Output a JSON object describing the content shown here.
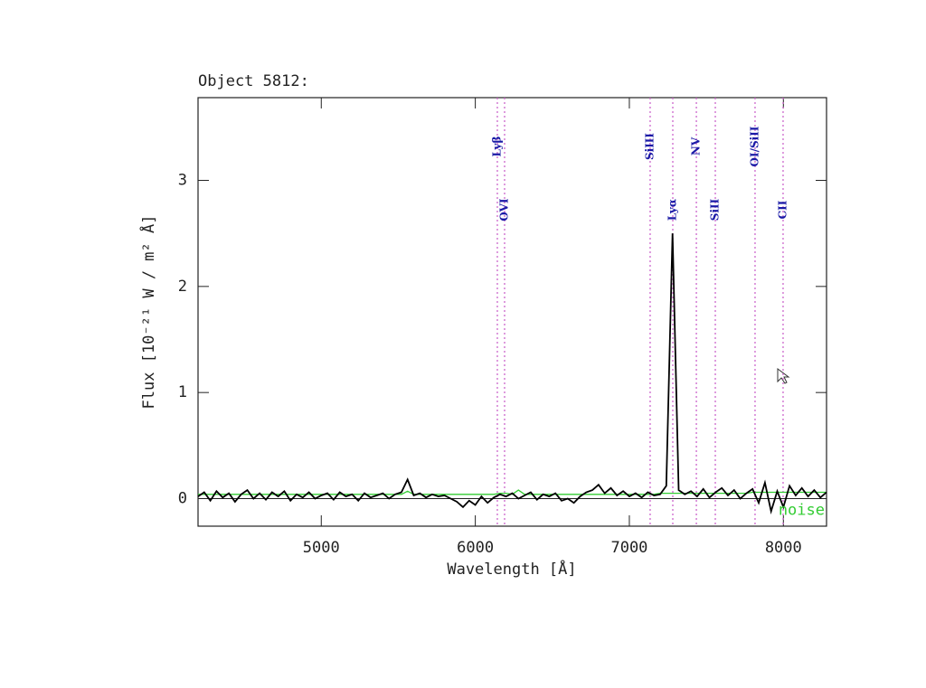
{
  "chart_data": {
    "type": "line",
    "title": "Object 5812:",
    "xlabel": "Wavelength [Å]",
    "ylabel": "Flux [10⁻²¹  W / m² Å]",
    "x": [
      4200,
      4240,
      4280,
      4320,
      4360,
      4400,
      4440,
      4480,
      4520,
      4560,
      4600,
      4640,
      4680,
      4720,
      4760,
      4800,
      4840,
      4880,
      4920,
      4960,
      5000,
      5040,
      5080,
      5120,
      5160,
      5200,
      5240,
      5280,
      5320,
      5360,
      5400,
      5440,
      5480,
      5520,
      5560,
      5600,
      5640,
      5680,
      5720,
      5760,
      5800,
      5840,
      5880,
      5920,
      5960,
      6000,
      6040,
      6080,
      6120,
      6160,
      6200,
      6240,
      6280,
      6320,
      6360,
      6400,
      6440,
      6480,
      6520,
      6560,
      6600,
      6640,
      6680,
      6720,
      6760,
      6800,
      6840,
      6880,
      6920,
      6960,
      7000,
      7040,
      7080,
      7120,
      7160,
      7200,
      7240,
      7280,
      7320,
      7360,
      7400,
      7440,
      7480,
      7520,
      7560,
      7600,
      7640,
      7680,
      7720,
      7760,
      7800,
      7840,
      7880,
      7920,
      7960,
      8000,
      8040,
      8080,
      8120,
      8160,
      8200,
      8240,
      8280
    ],
    "series": [
      {
        "color": "#000000",
        "values": [
          0.02,
          0.06,
          -0.02,
          0.07,
          0.01,
          0.05,
          -0.03,
          0.04,
          0.08,
          0.0,
          0.05,
          -0.01,
          0.06,
          0.02,
          0.07,
          -0.02,
          0.04,
          0.01,
          0.06,
          0.0,
          0.03,
          0.05,
          -0.01,
          0.06,
          0.02,
          0.04,
          -0.02,
          0.05,
          0.01,
          0.03,
          0.05,
          0.0,
          0.04,
          0.06,
          0.18,
          0.03,
          0.05,
          0.01,
          0.04,
          0.02,
          0.03,
          0.0,
          -0.03,
          -0.08,
          -0.02,
          -0.06,
          0.02,
          -0.04,
          0.01,
          0.04,
          0.02,
          0.05,
          0.0,
          0.03,
          0.06,
          -0.01,
          0.04,
          0.02,
          0.05,
          -0.02,
          0.0,
          -0.04,
          0.02,
          0.06,
          0.08,
          0.13,
          0.05,
          0.1,
          0.03,
          0.07,
          0.02,
          0.05,
          0.01,
          0.06,
          0.03,
          0.04,
          0.12,
          2.5,
          0.08,
          0.04,
          0.07,
          0.02,
          0.09,
          0.01,
          0.06,
          0.1,
          0.03,
          0.08,
          0.0,
          0.05,
          0.09,
          -0.04,
          0.15,
          -0.12,
          0.07,
          -0.08,
          0.12,
          0.03,
          0.1,
          0.02,
          0.08,
          0.01,
          0.06
        ]
      },
      {
        "name": "noise",
        "color": "#33cc33",
        "values": [
          0.04,
          0.04,
          0.04,
          0.04,
          0.04,
          0.04,
          0.04,
          0.04,
          0.04,
          0.04,
          0.04,
          0.04,
          0.04,
          0.04,
          0.04,
          0.04,
          0.04,
          0.04,
          0.04,
          0.04,
          0.04,
          0.04,
          0.04,
          0.04,
          0.04,
          0.04,
          0.04,
          0.04,
          0.04,
          0.04,
          0.04,
          0.04,
          0.04,
          0.04,
          0.07,
          0.04,
          0.04,
          0.04,
          0.04,
          0.04,
          0.04,
          0.04,
          0.04,
          0.04,
          0.04,
          0.04,
          0.04,
          0.04,
          0.04,
          0.05,
          0.05,
          0.04,
          0.08,
          0.04,
          0.04,
          0.04,
          0.04,
          0.04,
          0.04,
          0.04,
          0.04,
          0.04,
          0.04,
          0.04,
          0.04,
          0.04,
          0.04,
          0.04,
          0.04,
          0.04,
          0.04,
          0.04,
          0.04,
          0.04,
          0.04,
          0.05,
          0.05,
          0.05,
          0.05,
          0.05,
          0.05,
          0.05,
          0.05,
          0.05,
          0.05,
          0.05,
          0.05,
          0.05,
          0.05,
          0.05,
          0.06,
          0.06,
          0.06,
          0.06,
          0.06,
          0.06,
          0.06,
          0.06,
          0.06,
          0.06,
          0.06,
          0.06,
          0.06
        ]
      }
    ],
    "xlim": [
      4200,
      8280
    ],
    "ylim": [
      -0.26,
      3.78
    ],
    "xticks": [
      5000,
      6000,
      7000,
      8000
    ],
    "yticks": [
      0,
      1,
      2,
      3
    ],
    "zero_line": true,
    "line_color": "#cc66cc",
    "label_color": "#1a1aa6",
    "lines": [
      {
        "x": 6143,
        "label": "Lyβ"
      },
      {
        "x": 6190,
        "label": "OVI"
      },
      {
        "x": 7135,
        "label": "SiIII"
      },
      {
        "x": 7282,
        "label": "Lyα"
      },
      {
        "x": 7435,
        "label": "NV"
      },
      {
        "x": 7558,
        "label": "SiII"
      },
      {
        "x": 7816,
        "label": "OI/SiII"
      },
      {
        "x": 7998,
        "label": "CII"
      }
    ]
  }
}
